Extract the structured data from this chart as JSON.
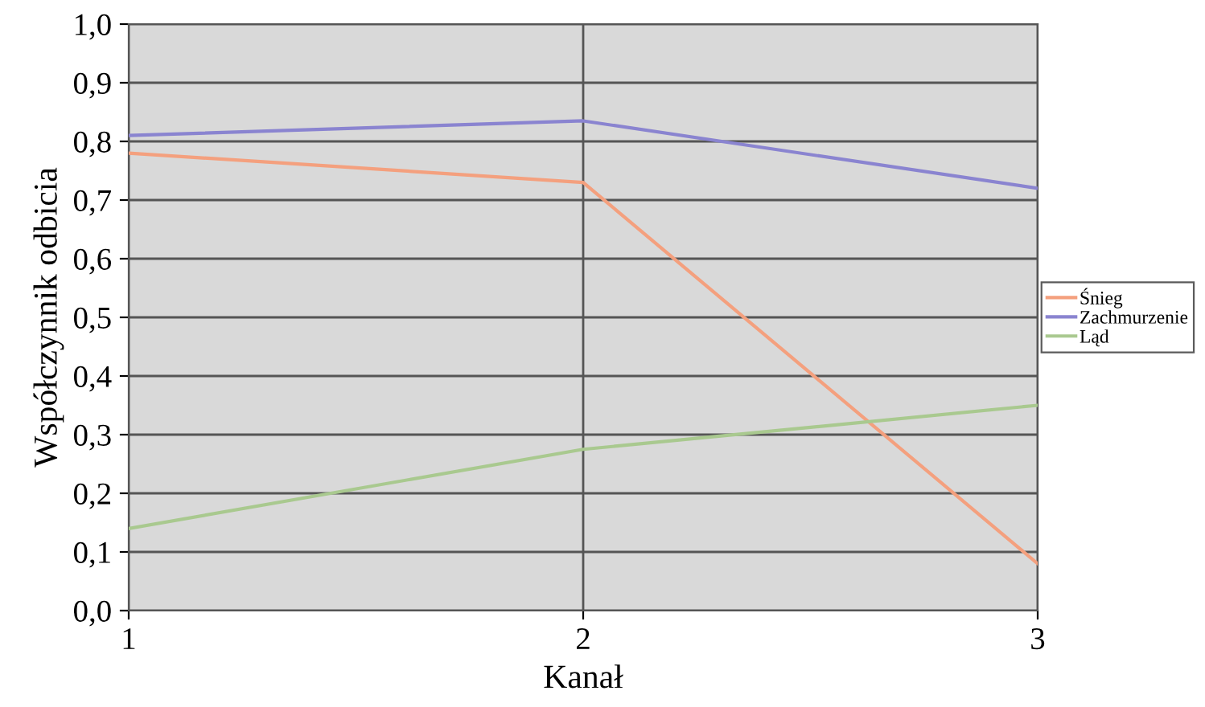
{
  "chart_data": {
    "type": "line",
    "xlabel": "Kanał",
    "ylabel": "Współczynnik odbicia",
    "x": [
      1,
      2,
      3
    ],
    "xlim": [
      1,
      3
    ],
    "xticks": [
      1,
      2,
      3
    ],
    "ylim": [
      0,
      1
    ],
    "yticks": [
      {
        "value": 0,
        "label": "0,0"
      },
      {
        "value": 0.1,
        "label": "0,1"
      },
      {
        "value": 0.2,
        "label": "0,2"
      },
      {
        "value": 0.3,
        "label": "0,3"
      },
      {
        "value": 0.4,
        "label": "0,4"
      },
      {
        "value": 0.5,
        "label": "0,5"
      },
      {
        "value": 0.6,
        "label": "0,6"
      },
      {
        "value": 0.7,
        "label": "0,7"
      },
      {
        "value": 0.8,
        "label": "0,8"
      },
      {
        "value": 0.9,
        "label": "0,9"
      },
      {
        "value": 1,
        "label": "1,0"
      }
    ],
    "grid": true,
    "legend": "right",
    "marker": "none",
    "line_style": "solid",
    "series": [
      {
        "name": "Śnieg",
        "color": "#f4a07e",
        "values": [
          0.78,
          0.73,
          0.08
        ]
      },
      {
        "name": "Zachmurzenie",
        "color": "#8a84d0",
        "values": [
          0.81,
          0.835,
          0.72
        ]
      },
      {
        "name": "Ląd",
        "color": "#a9c98f",
        "values": [
          0.14,
          0.275,
          0.35
        ]
      }
    ]
  }
}
